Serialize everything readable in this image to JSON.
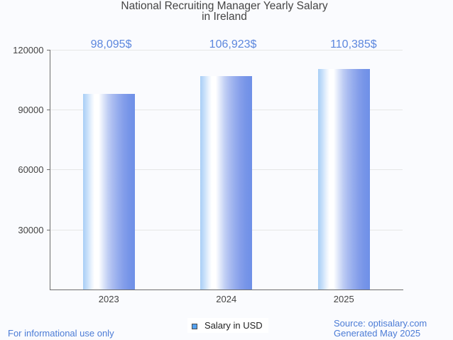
{
  "chart_data": {
    "type": "bar",
    "title": "National Recruiting Manager Yearly Salary in Ireland",
    "title_lines": [
      "National Recruiting Manager Yearly Salary",
      "in Ireland"
    ],
    "categories": [
      "2023",
      "2024",
      "2025"
    ],
    "series": [
      {
        "name": "Salary in USD",
        "values": [
          98095,
          106923,
          110385
        ]
      }
    ],
    "value_labels": [
      "98,095$",
      "106,923$",
      "110,385$"
    ],
    "y_ticks": [
      30000,
      60000,
      90000,
      120000
    ],
    "y_tick_labels": [
      "30000",
      "60000",
      "90000",
      "120000"
    ],
    "ylim": [
      0,
      120000
    ],
    "xlabel": "",
    "ylabel": "",
    "grid": true,
    "legend_position": "bottom"
  },
  "legend": {
    "label": "Salary in USD",
    "marker_color": "#54a0ee"
  },
  "footer": {
    "disclaimer": "For informational use only",
    "source": "Source: optisalary.com",
    "generated": "Generated May 2025"
  },
  "colors": {
    "value_label": "#5c87de",
    "footer_text": "#4c7cd6",
    "axis": "#6e6e6e",
    "gridline": "#e6e6e6",
    "tick_label": "#444444",
    "title": "#454545",
    "bar_left": "#a8cef6",
    "bar_highlight": "#ffffff",
    "bar_right": "#6e90e7",
    "background": "#fafbfe",
    "legend_marker": "#54a0ee"
  }
}
